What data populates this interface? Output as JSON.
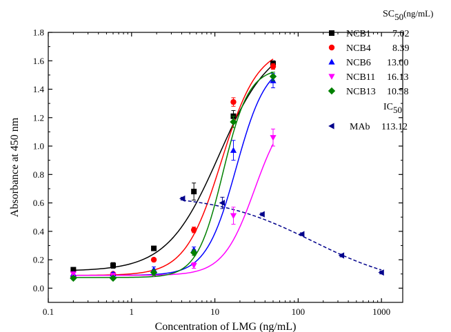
{
  "chart_data": {
    "type": "scatter",
    "xlabel": "Concentration of LMG (ng/mL)",
    "ylabel": "Absorbance at 450 nm",
    "xscale": "log",
    "xlim": [
      0.1,
      1800
    ],
    "ylim": [
      -0.1,
      1.8
    ],
    "x_ticks": [
      0.1,
      1,
      10,
      100,
      1000
    ],
    "x_tick_labels": [
      "0.1",
      "1",
      "10",
      "100",
      "1000"
    ],
    "y_ticks": [
      0.0,
      0.2,
      0.4,
      0.6,
      0.8,
      1.0,
      1.2,
      1.4,
      1.6,
      1.8
    ],
    "y_tick_labels": [
      "0.0",
      "0.2",
      "0.4",
      "0.6",
      "0.8",
      "1.0",
      "1.2",
      "1.4",
      "1.6",
      "1.8"
    ],
    "legend_position": "top-right",
    "legend_header_sc50": "SC50(ng/mL)",
    "legend_header_ic50": "IC50",
    "series": [
      {
        "name": "NCB1",
        "value_label": "7.02",
        "color": "#000000",
        "marker": "square",
        "curve_style": "solid",
        "x": [
          0.2,
          0.6,
          1.85,
          5.6,
          16.7,
          50
        ],
        "y": [
          0.13,
          0.16,
          0.28,
          0.68,
          1.21,
          1.58
        ],
        "err": [
          0.015,
          0.02,
          0.015,
          0.06,
          0.04,
          0.02
        ],
        "fit": {
          "bottom": 0.12,
          "top": 1.75,
          "ec50": 11.2,
          "hill": 1.4
        }
      },
      {
        "name": "NCB4",
        "value_label": "8.39",
        "color": "#ff0000",
        "marker": "circle",
        "curve_style": "solid",
        "x": [
          0.2,
          0.6,
          1.85,
          5.6,
          16.7,
          50
        ],
        "y": [
          0.08,
          0.1,
          0.2,
          0.41,
          1.31,
          1.56
        ],
        "err": [
          0.01,
          0.01,
          0.01,
          0.02,
          0.03,
          0.02
        ],
        "fit": {
          "bottom": 0.09,
          "top": 1.7,
          "ec50": 12.0,
          "hill": 2.0
        }
      },
      {
        "name": "NCB6",
        "value_label": "13.00",
        "color": "#0000ff",
        "marker": "triangle-up",
        "curve_style": "solid",
        "x": [
          0.2,
          0.6,
          1.85,
          5.6,
          16.7,
          50
        ],
        "y": [
          0.1,
          0.1,
          0.13,
          0.27,
          0.97,
          1.46
        ],
        "err": [
          0.01,
          0.01,
          0.02,
          0.02,
          0.07,
          0.05
        ],
        "fit": {
          "bottom": 0.09,
          "top": 1.6,
          "ec50": 18.0,
          "hill": 2.4
        }
      },
      {
        "name": "NCB11",
        "value_label": "16.13",
        "color": "#ff00ff",
        "marker": "triangle-down",
        "curve_style": "solid",
        "x": [
          0.2,
          0.6,
          1.85,
          5.6,
          16.7,
          50
        ],
        "y": [
          0.1,
          0.09,
          0.1,
          0.16,
          0.51,
          1.06
        ],
        "err": [
          0.01,
          0.01,
          0.01,
          0.02,
          0.06,
          0.06
        ],
        "fit": {
          "bottom": 0.09,
          "top": 1.3,
          "ec50": 30.0,
          "hill": 2.3
        }
      },
      {
        "name": "NCB13",
        "value_label": "10.58",
        "color": "#008000",
        "marker": "diamond",
        "curve_style": "solid",
        "x": [
          0.2,
          0.6,
          1.85,
          5.6,
          16.7,
          50
        ],
        "y": [
          0.07,
          0.07,
          0.11,
          0.25,
          1.17,
          1.49
        ],
        "err": [
          0.01,
          0.01,
          0.02,
          0.02,
          0.04,
          0.03
        ],
        "fit": {
          "bottom": 0.075,
          "top": 1.55,
          "ec50": 12.5,
          "hill": 2.8
        }
      },
      {
        "name": "MAb",
        "value_label": "113.12",
        "color": "#00008b",
        "marker": "triangle-left",
        "curve_style": "dashed",
        "x": [
          4.1,
          12.3,
          37,
          111,
          333,
          1000
        ],
        "y": [
          0.63,
          0.6,
          0.52,
          0.38,
          0.23,
          0.11
        ],
        "err": [
          0.01,
          0.04,
          0.01,
          0.01,
          0.01,
          0.01
        ],
        "fit": {
          "bottom": 0.0,
          "top": 0.66,
          "ec50": 150.0,
          "hill": 0.75,
          "x_from": 4.1,
          "x_to": 1000
        }
      }
    ]
  }
}
